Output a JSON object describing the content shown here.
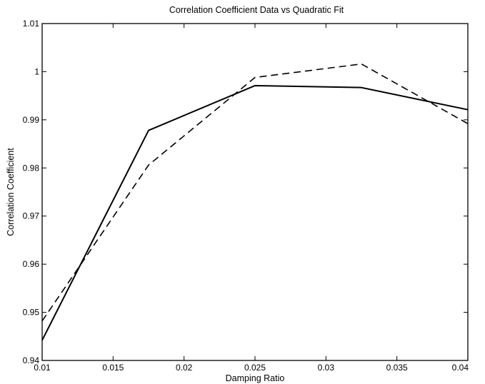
{
  "chart_data": {
    "type": "line",
    "title": "Correlation Coefficient Data vs Quadratic Fit",
    "xlabel": "Damping Ratio",
    "ylabel": "Correlation Coefficient",
    "xlim": [
      0.01,
      0.04
    ],
    "ylim": [
      0.94,
      1.01
    ],
    "grid": false,
    "x_ticks": [
      {
        "value": 0.01,
        "label": "0.01"
      },
      {
        "value": 0.015,
        "label": "0.015"
      },
      {
        "value": 0.02,
        "label": "0.02"
      },
      {
        "value": 0.025,
        "label": "0.025"
      },
      {
        "value": 0.03,
        "label": "0.03"
      },
      {
        "value": 0.035,
        "label": "0.035"
      },
      {
        "value": 0.04,
        "label": "0.04"
      }
    ],
    "y_ticks": [
      {
        "value": 0.94,
        "label": "0.94"
      },
      {
        "value": 0.95,
        "label": "0.95"
      },
      {
        "value": 0.96,
        "label": "0.96"
      },
      {
        "value": 0.97,
        "label": "0.97"
      },
      {
        "value": 0.98,
        "label": "0.98"
      },
      {
        "value": 0.99,
        "label": "0.99"
      },
      {
        "value": 1.0,
        "label": "1"
      },
      {
        "value": 1.01,
        "label": "1.01"
      }
    ],
    "series": [
      {
        "style": "solid",
        "color": "#000000",
        "x": [
          0.01,
          0.0175,
          0.025,
          0.0325,
          0.04
        ],
        "y": [
          0.9442,
          0.9878,
          0.9971,
          0.9967,
          0.9921
        ]
      },
      {
        "style": "dashed",
        "color": "#000000",
        "x": [
          0.01,
          0.0175,
          0.025,
          0.0325,
          0.04
        ],
        "y": [
          0.9482,
          0.9806,
          0.9988,
          1.0016,
          0.9892
        ]
      }
    ]
  }
}
